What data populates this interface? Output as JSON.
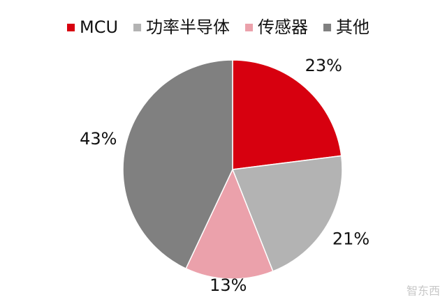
{
  "chart_data": {
    "type": "pie",
    "categories": [
      "MCU",
      "功率半导体",
      "传感器",
      "其他"
    ],
    "values": [
      23,
      21,
      13,
      43
    ],
    "value_labels": [
      "23%",
      "21%",
      "13%",
      "43%"
    ],
    "colors": [
      "#d7000f",
      "#b3b3b3",
      "#eba1ab",
      "#808080"
    ],
    "legend": "top"
  },
  "watermark": "智东西"
}
